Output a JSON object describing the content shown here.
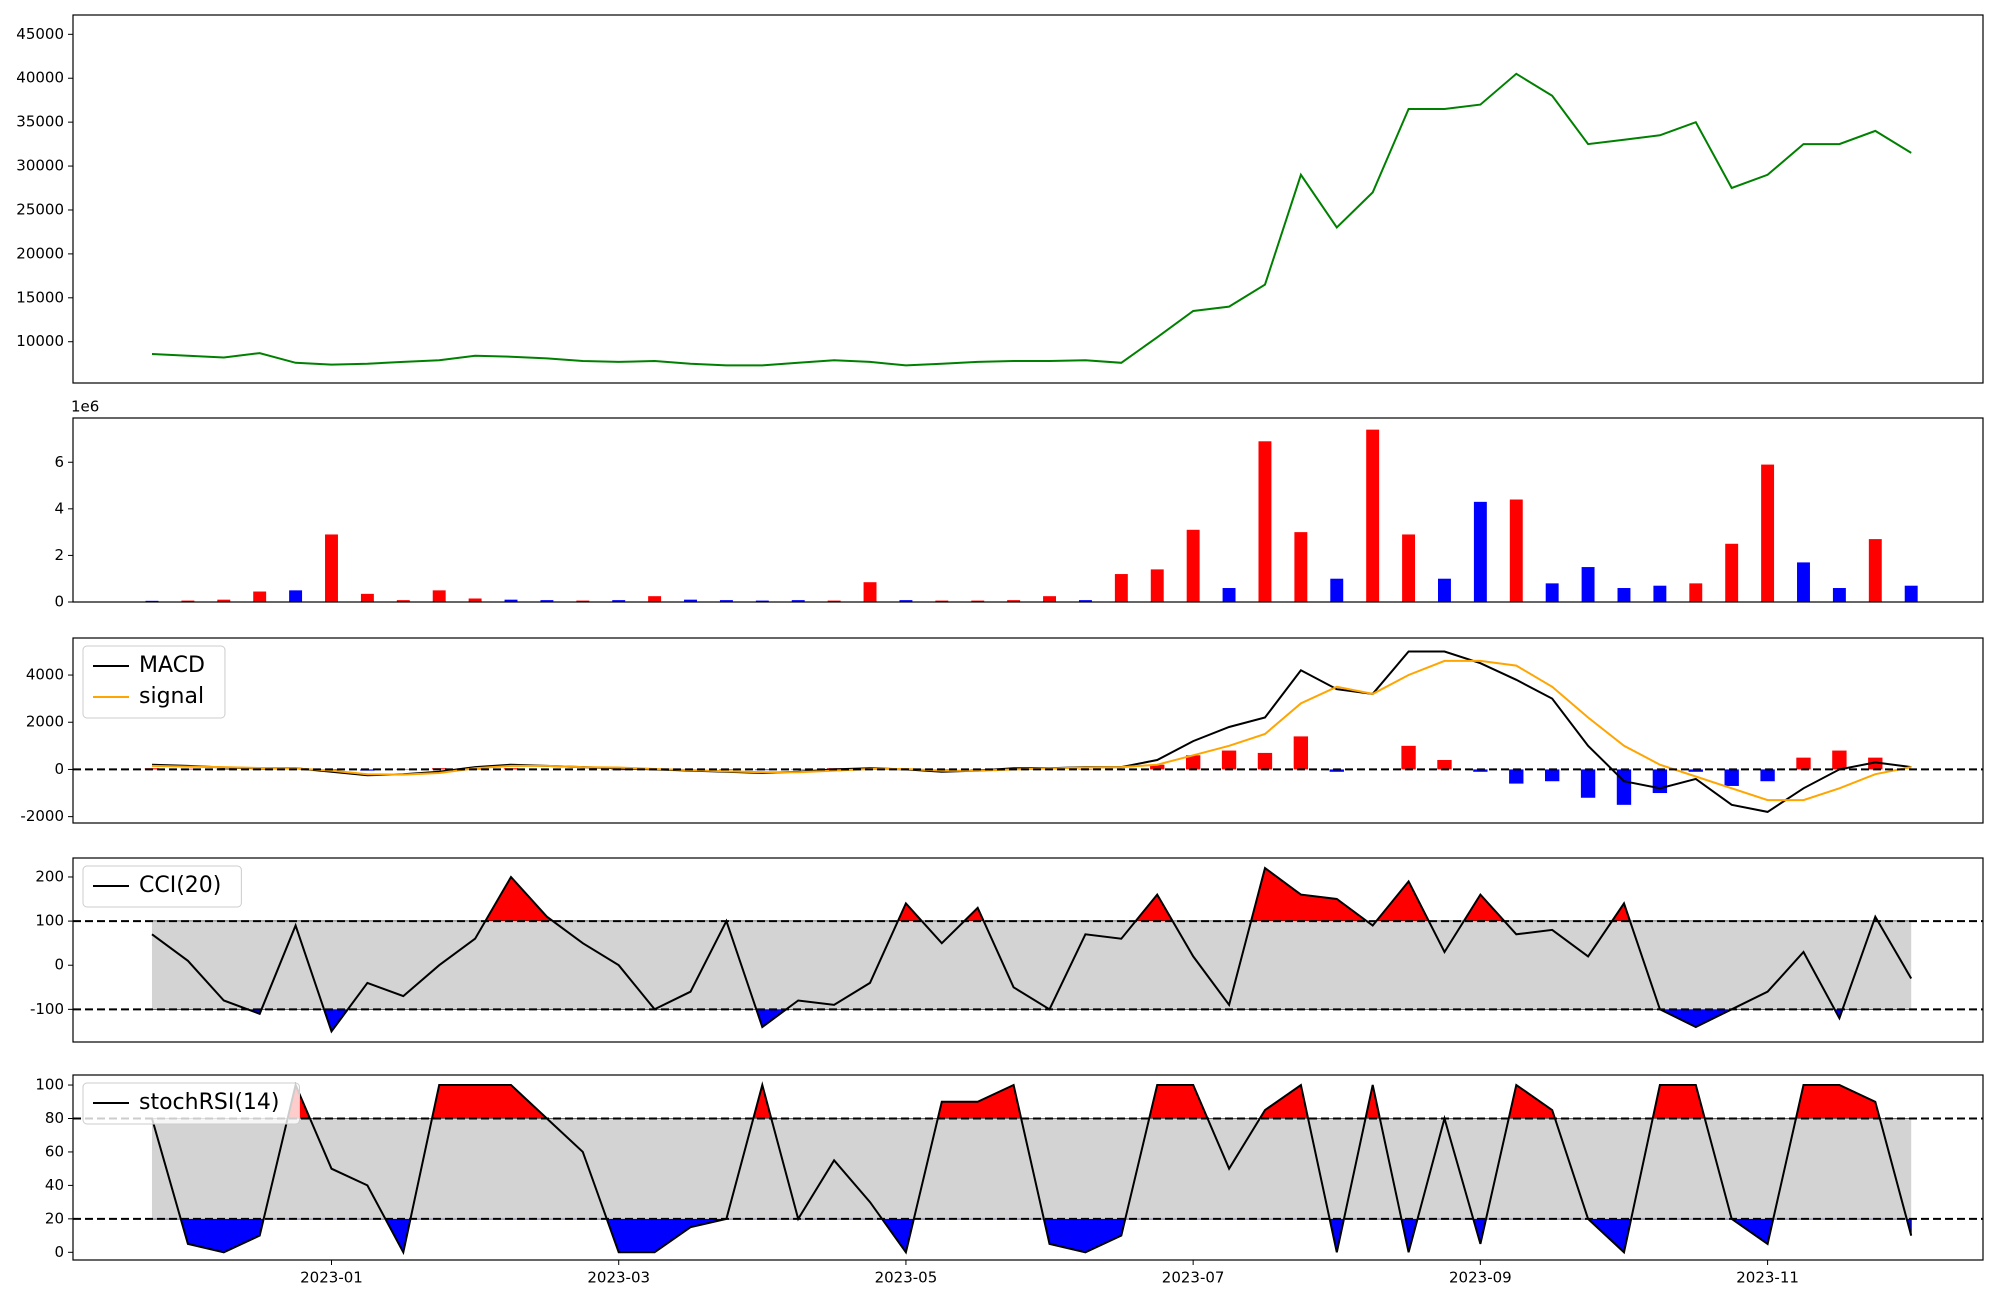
{
  "chart_data": [
    {
      "type": "line",
      "x": [
        -1.25,
        -1,
        -0.75,
        -0.5,
        -0.25,
        0,
        0.25,
        0.5,
        0.75,
        1,
        1.25,
        1.5,
        1.75,
        2,
        2.25,
        2.5,
        2.75,
        3,
        3.25,
        3.5,
        3.75,
        4,
        4.25,
        4.5,
        4.75,
        5,
        5.25,
        5.5,
        5.75,
        6,
        6.25,
        6.5,
        6.75,
        7,
        7.25,
        7.5,
        7.75,
        8,
        8.25,
        8.5,
        8.75,
        9,
        9.25,
        9.5,
        9.75,
        10,
        10.25,
        10.5,
        10.75,
        11
      ],
      "series": [
        {
          "color": "#008000",
          "values": [
            8600,
            8400,
            8200,
            8700,
            7600,
            7400,
            7500,
            7700,
            7900,
            8400,
            8300,
            8100,
            7800,
            7700,
            7800,
            7500,
            7300,
            7300,
            7600,
            7900,
            7700,
            7300,
            7500,
            7700,
            7800,
            7800,
            7900,
            7600,
            10500,
            13500,
            14000,
            16500,
            29000,
            23000,
            27000,
            36500,
            36500,
            37000,
            40500,
            38000,
            32500,
            33000,
            33500,
            35000,
            27500,
            29000,
            32500,
            32500,
            34000,
            31500
          ]
        }
      ],
      "xlim": [
        -1.8,
        11.5
      ],
      "ylim": [
        5300,
        47200
      ],
      "yticks": [
        10000,
        15000,
        20000,
        25000,
        30000,
        35000,
        40000,
        45000
      ]
    },
    {
      "type": "bar",
      "x": [
        -1.25,
        -1,
        -0.75,
        -0.5,
        -0.25,
        0,
        0.25,
        0.5,
        0.75,
        1,
        1.25,
        1.5,
        1.75,
        2,
        2.25,
        2.5,
        2.75,
        3,
        3.25,
        3.5,
        3.75,
        4,
        4.25,
        4.5,
        4.75,
        5,
        5.25,
        5.5,
        5.75,
        6,
        6.25,
        6.5,
        6.75,
        7,
        7.25,
        7.5,
        7.75,
        8,
        8.25,
        8.5,
        8.75,
        9,
        9.25,
        9.5,
        9.75,
        10,
        10.25,
        10.5,
        10.75,
        11
      ],
      "values": [
        50000,
        60000,
        100000,
        450000,
        500000,
        2900000,
        350000,
        80000,
        500000,
        150000,
        100000,
        80000,
        60000,
        80000,
        250000,
        100000,
        80000,
        60000,
        80000,
        60000,
        850000,
        80000,
        60000,
        60000,
        80000,
        250000,
        80000,
        1200000,
        1400000,
        3100000,
        600000,
        6900000,
        3000000,
        1000000,
        7400000,
        2900000,
        1000000,
        4300000,
        4400000,
        800000,
        1500000,
        600000,
        700000,
        800000,
        2500000,
        5900000,
        1700000,
        600000,
        2700000,
        700000
      ],
      "colors": [
        "#0000ff",
        "#ff0000",
        "#ff0000",
        "#ff0000",
        "#0000ff",
        "#ff0000",
        "#ff0000",
        "#ff0000",
        "#ff0000",
        "#ff0000",
        "#0000ff",
        "#0000ff",
        "#ff0000",
        "#0000ff",
        "#ff0000",
        "#0000ff",
        "#0000ff",
        "#0000ff",
        "#0000ff",
        "#ff0000",
        "#ff0000",
        "#0000ff",
        "#ff0000",
        "#ff0000",
        "#ff0000",
        "#ff0000",
        "#0000ff",
        "#ff0000",
        "#ff0000",
        "#ff0000",
        "#0000ff",
        "#ff0000",
        "#ff0000",
        "#0000ff",
        "#ff0000",
        "#ff0000",
        "#0000ff",
        "#0000ff",
        "#ff0000",
        "#0000ff",
        "#0000ff",
        "#0000ff",
        "#0000ff",
        "#ff0000",
        "#ff0000",
        "#ff0000",
        "#0000ff",
        "#0000ff",
        "#ff0000",
        "#0000ff"
      ],
      "xlim": [
        -1.8,
        11.5
      ],
      "ylim": [
        0,
        7900000
      ],
      "yticks": [
        {
          "value": 0,
          "label": "0"
        },
        {
          "value": 2000000,
          "label": "2"
        },
        {
          "value": 4000000,
          "label": "4"
        },
        {
          "value": 6000000,
          "label": "6"
        }
      ],
      "y_offset_label": "1e6"
    },
    {
      "type": "line",
      "x": [
        -1.25,
        -1,
        -0.75,
        -0.5,
        -0.25,
        0,
        0.25,
        0.5,
        0.75,
        1,
        1.25,
        1.5,
        1.75,
        2,
        2.25,
        2.5,
        2.75,
        3,
        3.25,
        3.5,
        3.75,
        4,
        4.25,
        4.5,
        4.75,
        5,
        5.25,
        5.5,
        5.75,
        6,
        6.25,
        6.5,
        6.75,
        7,
        7.25,
        7.5,
        7.75,
        8,
        8.25,
        8.5,
        8.75,
        9,
        9.25,
        9.5,
        9.75,
        10,
        10.25,
        10.5,
        10.75,
        11
      ],
      "series": [
        {
          "name": "MACD",
          "color": "#000000",
          "values": [
            200,
            150,
            80,
            50,
            50,
            -100,
            -250,
            -200,
            -100,
            100,
            200,
            150,
            100,
            50,
            0,
            -50,
            -100,
            -150,
            -100,
            0,
            50,
            0,
            -100,
            -50,
            50,
            50,
            100,
            100,
            400,
            1200,
            1800,
            2200,
            4200,
            3400,
            3200,
            5000,
            5000,
            4500,
            3800,
            3000,
            1000,
            -500,
            -800,
            -400,
            -1500,
            -1800,
            -800,
            0,
            300,
            100
          ]
        },
        {
          "name": "signal",
          "color": "#ffa500",
          "values": [
            150,
            120,
            100,
            60,
            40,
            -50,
            -200,
            -220,
            -150,
            50,
            150,
            150,
            100,
            80,
            20,
            -30,
            -80,
            -120,
            -120,
            -50,
            20,
            20,
            -50,
            -60,
            0,
            40,
            80,
            100,
            200,
            600,
            1000,
            1500,
            2800,
            3500,
            3200,
            4000,
            4600,
            4600,
            4400,
            3500,
            2200,
            1000,
            200,
            -300,
            -800,
            -1300,
            -1300,
            -800,
            -200,
            100
          ]
        }
      ],
      "histogram": {
        "values": [
          50,
          30,
          -20,
          -10,
          10,
          -50,
          -50,
          20,
          50,
          50,
          50,
          0,
          0,
          -30,
          -20,
          -20,
          -20,
          -30,
          20,
          50,
          30,
          -20,
          -50,
          10,
          50,
          10,
          20,
          0,
          200,
          600,
          800,
          700,
          1400,
          -100,
          0,
          1000,
          400,
          -100,
          -600,
          -500,
          -1200,
          -1500,
          -1000,
          -100,
          -700,
          -500,
          500,
          800,
          500,
          0
        ],
        "up_color": "#ff0000",
        "down_color": "#0000ff"
      },
      "hlines": [
        0
      ],
      "xlim": [
        -1.8,
        11.5
      ],
      "ylim": [
        -2270,
        5570
      ],
      "yticks": [
        -2000,
        0,
        2000,
        4000
      ],
      "legend": "upper left"
    },
    {
      "type": "oscillator",
      "x": [
        -1.25,
        -1,
        -0.75,
        -0.5,
        -0.25,
        0,
        0.25,
        0.5,
        0.75,
        1,
        1.25,
        1.5,
        1.75,
        2,
        2.25,
        2.5,
        2.75,
        3,
        3.25,
        3.5,
        3.75,
        4,
        4.25,
        4.5,
        4.75,
        5,
        5.25,
        5.5,
        5.75,
        6,
        6.25,
        6.5,
        6.75,
        7,
        7.25,
        7.5,
        7.75,
        8,
        8.25,
        8.5,
        8.75,
        9,
        9.25,
        9.5,
        9.75,
        10,
        10.25,
        10.5,
        10.75,
        11
      ],
      "series": [
        {
          "name": "CCI(20)",
          "color": "#000000",
          "values": [
            70,
            10,
            -80,
            -110,
            90,
            -150,
            -40,
            -70,
            0,
            60,
            200,
            110,
            50,
            0,
            -100,
            -60,
            100,
            -140,
            -80,
            -90,
            -40,
            140,
            50,
            130,
            -50,
            -100,
            70,
            60,
            160,
            20,
            -90,
            220,
            160,
            150,
            90,
            190,
            30,
            160,
            70,
            80,
            20,
            140,
            -100,
            -140,
            -100,
            -60,
            30,
            -120,
            110,
            -30
          ]
        }
      ],
      "hlines": [
        100,
        -100
      ],
      "above_color": "#ff0000",
      "below_color": "#0000ff",
      "band_color": "#d3d3d3",
      "xlim": [
        -1.8,
        11.5
      ],
      "ylim": [
        -174,
        243
      ],
      "yticks": [
        -100,
        0,
        100,
        200
      ],
      "legend": "upper left"
    },
    {
      "type": "oscillator",
      "x": [
        -1.25,
        -1,
        -0.75,
        -0.5,
        -0.25,
        0,
        0.25,
        0.5,
        0.75,
        1,
        1.25,
        1.5,
        1.75,
        2,
        2.25,
        2.5,
        2.75,
        3,
        3.25,
        3.5,
        3.75,
        4,
        4.25,
        4.5,
        4.75,
        5,
        5.25,
        5.5,
        5.75,
        6,
        6.25,
        6.5,
        6.75,
        7,
        7.25,
        7.5,
        7.75,
        8,
        8.25,
        8.5,
        8.75,
        9,
        9.25,
        9.5,
        9.75,
        10,
        10.25,
        10.5,
        10.75,
        11
      ],
      "series": [
        {
          "name": "stochRSI(14)",
          "color": "#000000",
          "values": [
            80,
            5,
            0,
            10,
            100,
            50,
            40,
            0,
            100,
            100,
            100,
            80,
            60,
            0,
            0,
            15,
            20,
            100,
            20,
            55,
            30,
            0,
            90,
            90,
            100,
            5,
            0,
            10,
            100,
            100,
            50,
            85,
            100,
            0,
            100,
            0,
            80,
            5,
            100,
            85,
            20,
            0,
            100,
            100,
            20,
            5,
            100,
            100,
            90,
            10
          ]
        }
      ],
      "hlines": [
        80,
        20
      ],
      "above_color": "#ff0000",
      "below_color": "#0000ff",
      "band_color": "#d3d3d3",
      "xlim": [
        -1.8,
        11.5
      ],
      "ylim": [
        -4.6,
        106
      ],
      "yticks": [
        0,
        20,
        40,
        60,
        80,
        100
      ],
      "legend": "upper left",
      "xticks": [
        {
          "value": 0,
          "label": "2023-01"
        },
        {
          "value": 2,
          "label": "2023-03"
        },
        {
          "value": 4,
          "label": "2023-05"
        },
        {
          "value": 6,
          "label": "2023-07"
        },
        {
          "value": 8,
          "label": "2023-09"
        },
        {
          "value": 10,
          "label": "2023-11"
        }
      ]
    }
  ]
}
